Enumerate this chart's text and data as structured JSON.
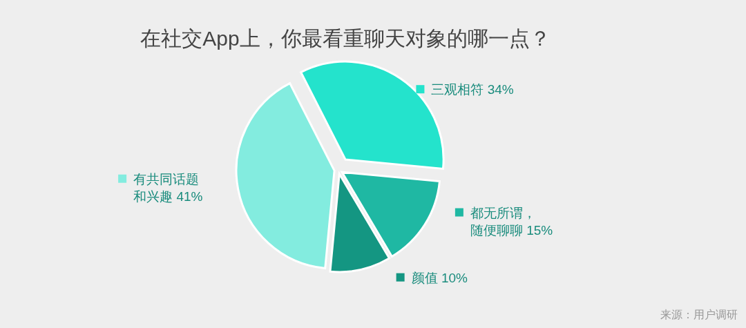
{
  "chart_data": {
    "type": "pie",
    "title": "在社交App上，你最看重聊天对象的哪一点？",
    "categories": [
      "三观相符",
      "都无所谓，随便聊聊",
      "颜值",
      "有共同话题和兴趣"
    ],
    "values": [
      34,
      15,
      10,
      41
    ],
    "colors": [
      "#24e3cc",
      "#1fb8a3",
      "#149682",
      "#83ecdf"
    ],
    "value_labels": [
      "34%",
      "15%",
      "10%",
      "41%"
    ],
    "legend": "right",
    "annotations": [
      "来源：用户调研"
    ]
  }
}
